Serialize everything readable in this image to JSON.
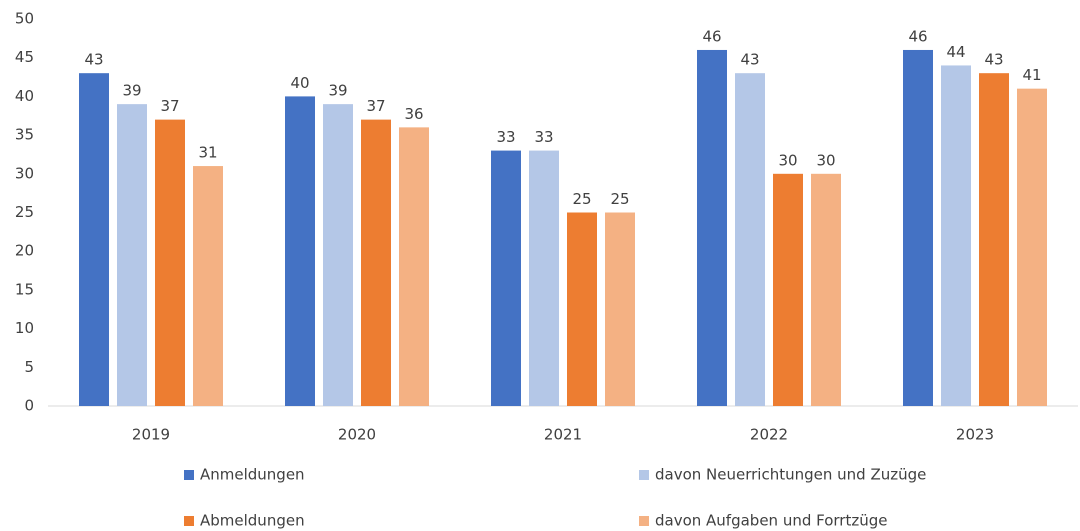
{
  "chart_data": {
    "type": "bar",
    "categories": [
      "2019",
      "2020",
      "2021",
      "2022",
      "2023"
    ],
    "series": [
      {
        "name": "Anmeldungen",
        "color": "#4472c4",
        "values": [
          43,
          40,
          33,
          46,
          46
        ]
      },
      {
        "name": "davon Neuerrichtungen und Zuzüge",
        "color": "#b4c7e7",
        "values": [
          39,
          39,
          33,
          43,
          44
        ]
      },
      {
        "name": "Abmeldungen",
        "color": "#ed7d31",
        "values": [
          37,
          37,
          25,
          30,
          43
        ]
      },
      {
        "name": "davon Aufgaben und Forrtzüge",
        "color": "#f4b183",
        "values": [
          31,
          36,
          25,
          30,
          41
        ]
      }
    ],
    "ylim": [
      0,
      50
    ],
    "yticks": [
      0,
      5,
      10,
      15,
      20,
      25,
      30,
      35,
      40,
      45,
      50
    ],
    "grid": false,
    "legend": "bottom"
  }
}
